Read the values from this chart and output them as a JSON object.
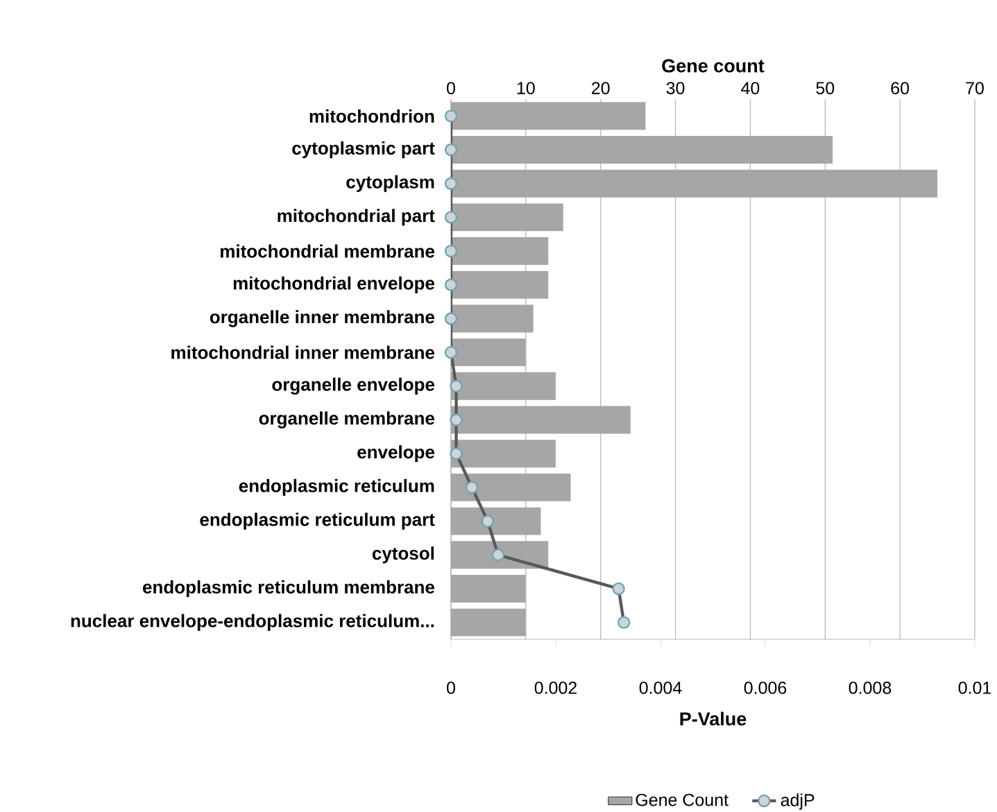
{
  "chart_data": {
    "type": "bar",
    "orientation": "horizontal",
    "categories": [
      "mitochondrion",
      "cytoplasmic part",
      "cytoplasm",
      "mitochondrial part",
      "mitochondrial membrane",
      "mitochondrial envelope",
      "organelle inner membrane",
      "mitochondrial inner membrane",
      "organelle envelope",
      "organelle membrane",
      "envelope",
      "endoplasmic reticulum",
      "endoplasmic reticulum part",
      "cytosol",
      "endoplasmic reticulum membrane",
      "nuclear envelope-endoplasmic reticulum..."
    ],
    "series": [
      {
        "name": "Gene Count",
        "axis": "x2",
        "color": "#a6a6a6",
        "values": [
          26,
          51,
          65,
          15,
          13,
          13,
          11,
          10,
          14,
          24,
          14,
          16,
          12,
          13,
          10,
          10
        ]
      },
      {
        "name": "adjP",
        "type": "line",
        "color": "#595959",
        "marker": "circle",
        "line_style": "solid",
        "values": [
          0,
          0,
          0,
          0,
          0,
          0,
          0,
          0,
          0.0001,
          0.0001,
          0.0001,
          0.0004,
          0.0007,
          0.0009,
          0.0032,
          0.0033
        ]
      }
    ],
    "xlabel": "P-Value",
    "x2label": "Gene count",
    "xlim": [
      0,
      0.01
    ],
    "xticks": [
      0,
      0.002,
      0.004,
      0.006,
      0.008,
      0.01
    ],
    "x2lim": [
      0,
      70
    ],
    "x2ticks": [
      0,
      10,
      20,
      30,
      40,
      50,
      60,
      70
    ],
    "grid": "x",
    "legend": "bottom"
  }
}
